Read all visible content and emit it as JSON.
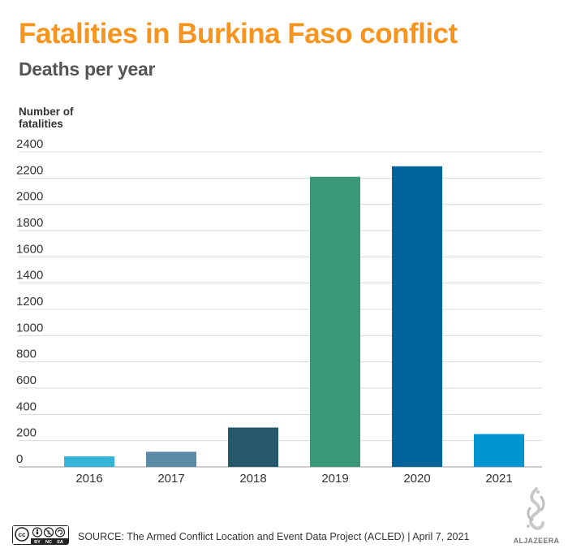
{
  "header": {
    "title": "Fatalities in Burkina Faso conflict",
    "subtitle": "Deaths per year"
  },
  "chart_data": {
    "type": "bar",
    "title": "Fatalities in Burkina Faso conflict",
    "subtitle": "Deaths per year",
    "ylabel": "Number of fatalities",
    "xlabel": "",
    "categories": [
      "2016",
      "2017",
      "2018",
      "2019",
      "2020",
      "2021"
    ],
    "values": [
      80,
      115,
      300,
      2210,
      2290,
      250
    ],
    "colors": [
      "#35b4d8",
      "#5b8aa6",
      "#24586a",
      "#3a9877",
      "#00649a",
      "#0096cf"
    ],
    "ylim": [
      0,
      2400
    ],
    "yticks": [
      0,
      200,
      400,
      600,
      800,
      1000,
      1200,
      1400,
      1600,
      1800,
      2000,
      2200,
      2400
    ],
    "grid": true,
    "legend": "none"
  },
  "footer": {
    "license_badge": [
      "cc",
      "BY",
      "NC",
      "SA"
    ],
    "source": "SOURCE: The Armed Conflict Location and Event Data Project (ACLED)  |  April 7, 2021",
    "brand": "ALJAZEERA"
  },
  "colors": {
    "title": "#f7941d",
    "subtitle": "#555555",
    "gridline": "#d9d9d9"
  }
}
